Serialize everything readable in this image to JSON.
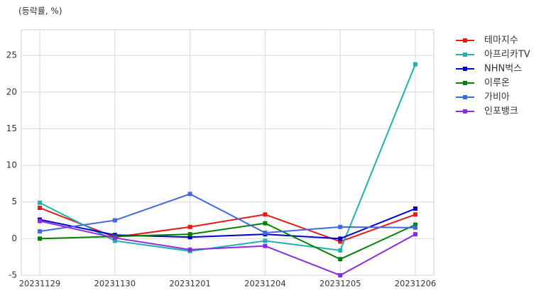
{
  "chart_data": {
    "type": "line",
    "title": "(등락률, %)",
    "categories": [
      "20231129",
      "20231130",
      "20231201",
      "20231204",
      "20231205",
      "20231206"
    ],
    "series": [
      {
        "name": "테마지수",
        "color": "#e41a1c",
        "values": [
          4.2,
          0.2,
          1.6,
          3.3,
          -0.4,
          3.3
        ]
      },
      {
        "name": "아프리카TV",
        "color": "#20b2aa",
        "values": [
          4.9,
          -0.3,
          -1.7,
          -0.3,
          -1.6,
          23.8
        ]
      },
      {
        "name": "NHN벅스",
        "color": "#0000cd",
        "values": [
          2.6,
          0.5,
          0.2,
          0.6,
          0.0,
          4.1
        ]
      },
      {
        "name": "이루온",
        "color": "#008000",
        "values": [
          0.0,
          0.3,
          0.6,
          2.1,
          -2.8,
          1.9
        ]
      },
      {
        "name": "가비아",
        "color": "#4169e1",
        "values": [
          1.0,
          2.5,
          6.1,
          0.8,
          1.6,
          1.5
        ]
      },
      {
        "name": "인포뱅크",
        "color": "#8a2be2",
        "values": [
          2.4,
          0.1,
          -1.5,
          -1.0,
          -5.0,
          0.6
        ]
      }
    ],
    "ylim": [
      -5,
      28.5
    ],
    "yticks": [
      -5,
      0,
      5,
      10,
      15,
      20,
      25
    ],
    "grid": true,
    "legend": "outside-right"
  }
}
